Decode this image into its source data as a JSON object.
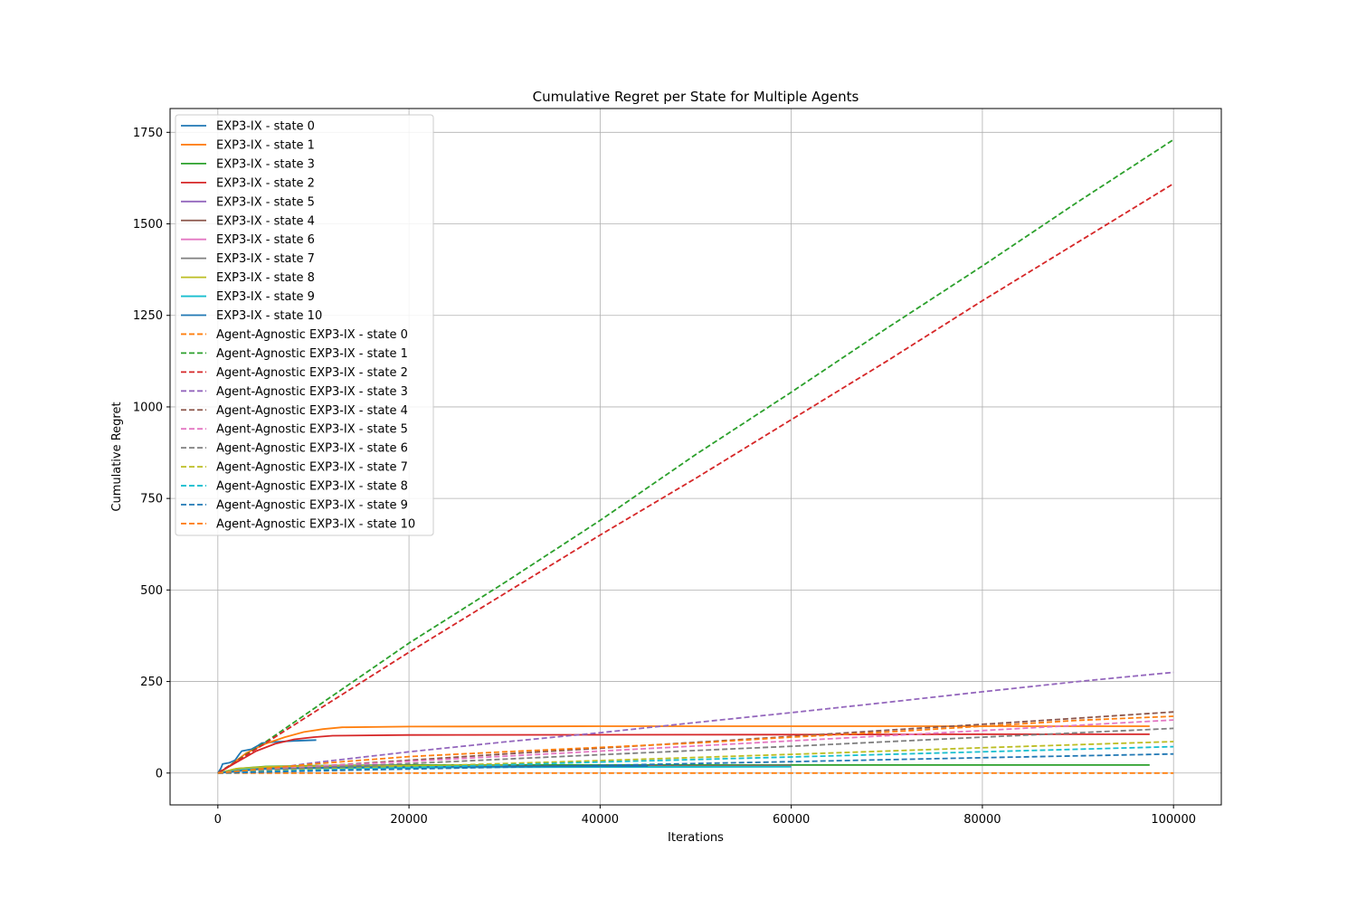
{
  "chart_data": {
    "type": "line",
    "title": "Cumulative Regret per State for Multiple Agents",
    "xlabel": "Iterations",
    "ylabel": "Cumulative Regret",
    "xlim": [
      -5000,
      105000
    ],
    "ylim": [
      -87,
      1815
    ],
    "xticks": [
      0,
      20000,
      40000,
      60000,
      80000,
      100000
    ],
    "xtick_labels": [
      "0",
      "20000",
      "40000",
      "60000",
      "80000",
      "100000"
    ],
    "yticks": [
      0,
      250,
      500,
      750,
      1000,
      1250,
      1500,
      1750
    ],
    "ytick_labels": [
      "0",
      "250",
      "500",
      "750",
      "1000",
      "1250",
      "1500",
      "1750"
    ],
    "grid": true,
    "legend_position": "upper-left",
    "series": [
      {
        "name": "EXP3-IX - state 0",
        "color": "#1f77b4",
        "dash": false,
        "points": [
          [
            0,
            0
          ],
          [
            300,
            12
          ],
          [
            500,
            25
          ],
          [
            1200,
            28
          ],
          [
            1800,
            35
          ],
          [
            2200,
            50
          ],
          [
            2500,
            60
          ],
          [
            3500,
            65
          ],
          [
            4200,
            75
          ],
          [
            4600,
            82
          ],
          [
            6000,
            85
          ],
          [
            8000,
            88
          ],
          [
            10300,
            90
          ]
        ]
      },
      {
        "name": "EXP3-IX - state 1",
        "color": "#ff7f0e",
        "dash": false,
        "points": [
          [
            0,
            0
          ],
          [
            1000,
            15
          ],
          [
            2000,
            35
          ],
          [
            3000,
            55
          ],
          [
            5000,
            80
          ],
          [
            7000,
            98
          ],
          [
            9000,
            112
          ],
          [
            11000,
            120
          ],
          [
            13000,
            125
          ],
          [
            20000,
            127
          ],
          [
            40000,
            128
          ],
          [
            60000,
            128
          ],
          [
            80000,
            128
          ],
          [
            97500,
            128
          ]
        ]
      },
      {
        "name": "EXP3-IX - state 3",
        "color": "#2ca02c",
        "dash": false,
        "points": [
          [
            0,
            0
          ],
          [
            2000,
            12
          ],
          [
            5000,
            18
          ],
          [
            10000,
            20
          ],
          [
            20000,
            22
          ],
          [
            60000,
            22
          ],
          [
            97500,
            22
          ]
        ]
      },
      {
        "name": "EXP3-IX - state 2",
        "color": "#d62728",
        "dash": false,
        "points": [
          [
            0,
            0
          ],
          [
            1000,
            15
          ],
          [
            2000,
            30
          ],
          [
            3000,
            45
          ],
          [
            4000,
            60
          ],
          [
            6000,
            80
          ],
          [
            8000,
            92
          ],
          [
            10000,
            98
          ],
          [
            12000,
            102
          ],
          [
            20000,
            104
          ],
          [
            60000,
            105
          ],
          [
            80000,
            106
          ],
          [
            97500,
            106
          ]
        ]
      },
      {
        "name": "EXP3-IX - state 5",
        "color": "#9467bd",
        "dash": false,
        "points": [
          [
            0,
            0
          ],
          [
            3000,
            10
          ],
          [
            10000,
            15
          ],
          [
            30000,
            18
          ],
          [
            60000,
            20
          ]
        ]
      },
      {
        "name": "EXP3-IX - state 4",
        "color": "#8c564b",
        "dash": false,
        "points": [
          [
            0,
            0
          ],
          [
            3000,
            12
          ],
          [
            10000,
            16
          ],
          [
            30000,
            19
          ],
          [
            60000,
            20
          ]
        ]
      },
      {
        "name": "EXP3-IX - state 6",
        "color": "#e377c2",
        "dash": false,
        "points": [
          [
            0,
            0
          ],
          [
            3000,
            10
          ],
          [
            10000,
            14
          ],
          [
            30000,
            17
          ],
          [
            60000,
            18
          ]
        ]
      },
      {
        "name": "EXP3-IX - state 7",
        "color": "#7f7f7f",
        "dash": false,
        "points": [
          [
            0,
            0
          ],
          [
            3000,
            11
          ],
          [
            10000,
            15
          ],
          [
            30000,
            17
          ],
          [
            60000,
            19
          ]
        ]
      },
      {
        "name": "EXP3-IX - state 8",
        "color": "#bcbd22",
        "dash": false,
        "points": [
          [
            0,
            0
          ],
          [
            2000,
            12
          ],
          [
            5000,
            17
          ],
          [
            10000,
            19
          ],
          [
            20000,
            20
          ],
          [
            30000,
            21
          ]
        ]
      },
      {
        "name": "EXP3-IX - state 9",
        "color": "#17becf",
        "dash": false,
        "points": [
          [
            0,
            0
          ],
          [
            3000,
            10
          ],
          [
            10000,
            13
          ],
          [
            30000,
            16
          ],
          [
            60000,
            17
          ]
        ]
      },
      {
        "name": "EXP3-IX - state 10",
        "color": "#1f77b4",
        "dash": false,
        "points": [
          [
            0,
            0
          ],
          [
            5000,
            12
          ],
          [
            15000,
            16
          ],
          [
            30000,
            18
          ],
          [
            45000,
            19
          ]
        ]
      },
      {
        "name": "Agent-Agnostic EXP3-IX - state 0",
        "color": "#ff7f0e",
        "dash": true,
        "points": [
          [
            0,
            0
          ],
          [
            100000,
            0
          ]
        ]
      },
      {
        "name": "Agent-Agnostic EXP3-IX - state 1",
        "color": "#2ca02c",
        "dash": true,
        "points": [
          [
            0,
            0
          ],
          [
            5000,
            85
          ],
          [
            10000,
            175
          ],
          [
            20000,
            355
          ],
          [
            30000,
            520
          ],
          [
            40000,
            690
          ],
          [
            50000,
            870
          ],
          [
            60000,
            1040
          ],
          [
            70000,
            1215
          ],
          [
            80000,
            1385
          ],
          [
            90000,
            1560
          ],
          [
            100000,
            1730
          ]
        ]
      },
      {
        "name": "Agent-Agnostic EXP3-IX - state 2",
        "color": "#d62728",
        "dash": true,
        "points": [
          [
            0,
            0
          ],
          [
            5000,
            82
          ],
          [
            10000,
            165
          ],
          [
            20000,
            330
          ],
          [
            30000,
            490
          ],
          [
            40000,
            650
          ],
          [
            50000,
            805
          ],
          [
            60000,
            965
          ],
          [
            70000,
            1125
          ],
          [
            80000,
            1290
          ],
          [
            90000,
            1450
          ],
          [
            100000,
            1610
          ]
        ]
      },
      {
        "name": "Agent-Agnostic EXP3-IX - state 3",
        "color": "#9467bd",
        "dash": true,
        "points": [
          [
            0,
            0
          ],
          [
            5000,
            10
          ],
          [
            10000,
            28
          ],
          [
            20000,
            58
          ],
          [
            30000,
            85
          ],
          [
            40000,
            110
          ],
          [
            50000,
            138
          ],
          [
            60000,
            165
          ],
          [
            70000,
            193
          ],
          [
            80000,
            222
          ],
          [
            90000,
            250
          ],
          [
            100000,
            275
          ]
        ]
      },
      {
        "name": "Agent-Agnostic EXP3-IX - state 4",
        "color": "#8c564b",
        "dash": true,
        "points": [
          [
            0,
            0
          ],
          [
            10000,
            18
          ],
          [
            20000,
            35
          ],
          [
            30000,
            52
          ],
          [
            40000,
            68
          ],
          [
            50000,
            84
          ],
          [
            60000,
            100
          ],
          [
            70000,
            117
          ],
          [
            80000,
            133
          ],
          [
            90000,
            150
          ],
          [
            100000,
            167
          ]
        ]
      },
      {
        "name": "Agent-Agnostic EXP3-IX - state 5",
        "color": "#e377c2",
        "dash": true,
        "points": [
          [
            0,
            0
          ],
          [
            10000,
            18
          ],
          [
            20000,
            32
          ],
          [
            40000,
            60
          ],
          [
            60000,
            88
          ],
          [
            80000,
            116
          ],
          [
            100000,
            145
          ]
        ]
      },
      {
        "name": "Agent-Agnostic EXP3-IX - state 6",
        "color": "#7f7f7f",
        "dash": true,
        "points": [
          [
            0,
            0
          ],
          [
            10000,
            15
          ],
          [
            20000,
            26
          ],
          [
            40000,
            50
          ],
          [
            60000,
            73
          ],
          [
            80000,
            98
          ],
          [
            100000,
            122
          ]
        ]
      },
      {
        "name": "Agent-Agnostic EXP3-IX - state 7",
        "color": "#bcbd22",
        "dash": true,
        "points": [
          [
            0,
            0
          ],
          [
            10000,
            10
          ],
          [
            20000,
            18
          ],
          [
            40000,
            34
          ],
          [
            60000,
            51
          ],
          [
            80000,
            69
          ],
          [
            100000,
            86
          ]
        ]
      },
      {
        "name": "Agent-Agnostic EXP3-IX - state 8",
        "color": "#17becf",
        "dash": true,
        "points": [
          [
            0,
            0
          ],
          [
            10000,
            8
          ],
          [
            20000,
            15
          ],
          [
            40000,
            30
          ],
          [
            60000,
            44
          ],
          [
            80000,
            58
          ],
          [
            100000,
            72
          ]
        ]
      },
      {
        "name": "Agent-Agnostic EXP3-IX - state 9",
        "color": "#1f77b4",
        "dash": true,
        "points": [
          [
            0,
            0
          ],
          [
            10000,
            6
          ],
          [
            20000,
            11
          ],
          [
            40000,
            21
          ],
          [
            60000,
            31
          ],
          [
            80000,
            42
          ],
          [
            100000,
            52
          ]
        ]
      },
      {
        "name": "Agent-Agnostic EXP3-IX - state 10",
        "color": "#ff7f0e",
        "dash": true,
        "points": [
          [
            0,
            0
          ],
          [
            10000,
            25
          ],
          [
            20000,
            45
          ],
          [
            30000,
            58
          ],
          [
            40000,
            70
          ],
          [
            50000,
            82
          ],
          [
            60000,
            98
          ],
          [
            70000,
            112
          ],
          [
            80000,
            128
          ],
          [
            90000,
            144
          ],
          [
            100000,
            155
          ]
        ]
      }
    ]
  }
}
